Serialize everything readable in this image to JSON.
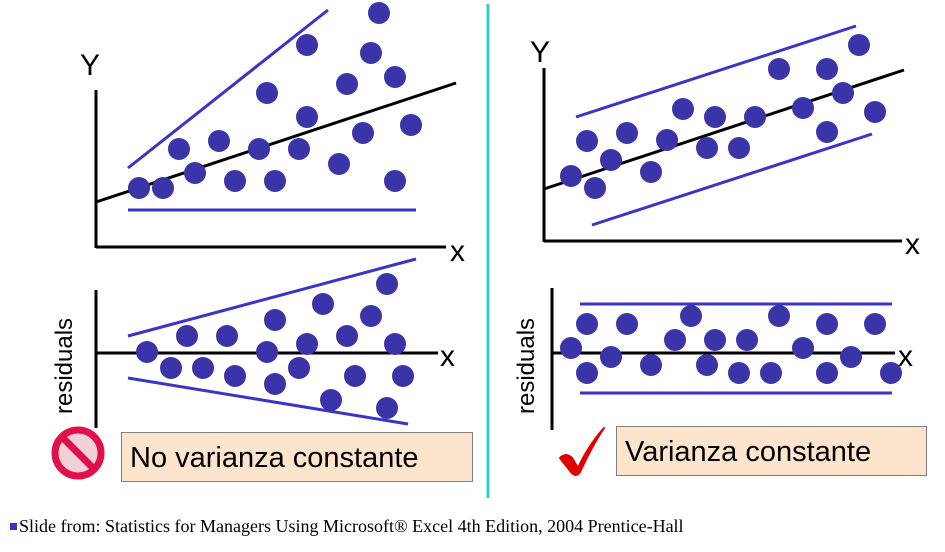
{
  "colors": {
    "points": "#3a34a8",
    "bands": "#3a34c8",
    "divider": "#33cccc",
    "no_icon": "#e0104a",
    "check": "#e00000",
    "box_fill": "#fde4cc"
  },
  "left": {
    "top_y_label": "Y",
    "top_x_label": "x",
    "resid_x_label": "x",
    "resid_y_label": "residuals",
    "verdict_icon": "no-entry-icon",
    "verdict": "No varianza constante"
  },
  "right": {
    "top_y_label": "Y",
    "top_x_label": "x",
    "resid_x_label": "x",
    "resid_y_label": "residuals",
    "verdict_icon": "checkmark-icon",
    "verdict": "Varianza constante"
  },
  "footer": "Slide from: Statistics for Managers  Using Microsoft® Excel  4th Edition, 2004 Prentice-Hall"
}
